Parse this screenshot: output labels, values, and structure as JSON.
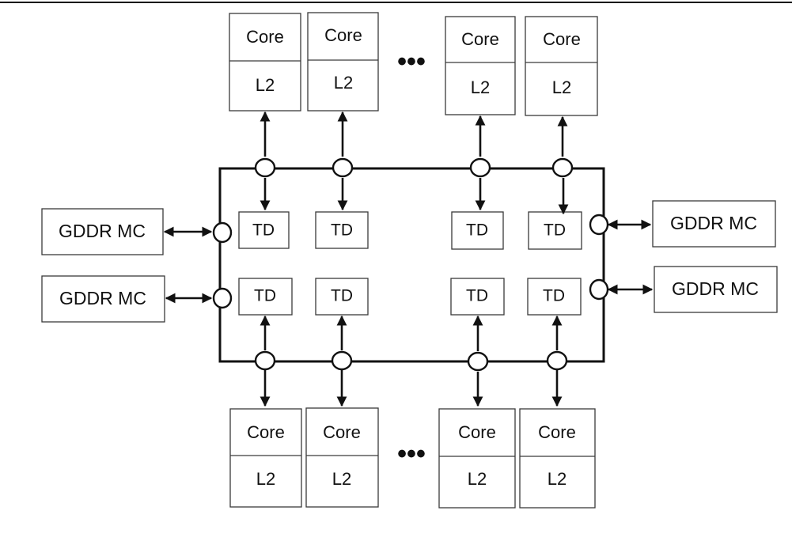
{
  "diagram": {
    "core_label": "Core",
    "cache_label": "L2",
    "td_label": "TD",
    "mc_label": "GDDR MC",
    "ellipsis": "•••",
    "top_cores": [
      {
        "core": "Core",
        "cache": "L2"
      },
      {
        "core": "Core",
        "cache": "L2"
      },
      {
        "core": "Core",
        "cache": "L2"
      },
      {
        "core": "Core",
        "cache": "L2"
      }
    ],
    "bottom_cores": [
      {
        "core": "Core",
        "cache": "L2"
      },
      {
        "core": "Core",
        "cache": "L2"
      },
      {
        "core": "Core",
        "cache": "L2"
      },
      {
        "core": "Core",
        "cache": "L2"
      }
    ],
    "top_tds": [
      "TD",
      "TD",
      "TD",
      "TD"
    ],
    "bottom_tds": [
      "TD",
      "TD",
      "TD",
      "TD"
    ],
    "memory_controllers": {
      "left_top": "GDDR MC",
      "left_bottom": "GDDR MC",
      "right_top": "GDDR MC",
      "right_bottom": "GDDR MC"
    }
  }
}
